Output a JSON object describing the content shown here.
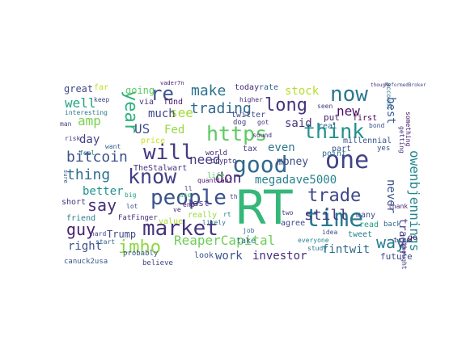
{
  "words": [
    {
      "text": "RT",
      "color": "#35b779"
    },
    {
      "text": "time",
      "color": "#2a788e"
    },
    {
      "text": "one",
      "color": "#414487"
    },
    {
      "text": "good",
      "color": "#31688e"
    },
    {
      "text": "people",
      "color": "#3b528b"
    },
    {
      "text": "market",
      "color": "#46337e"
    },
    {
      "text": "will",
      "color": "#443983"
    },
    {
      "text": "https",
      "color": "#5ec962"
    },
    {
      "text": "think",
      "color": "#21918c"
    },
    {
      "text": "know",
      "color": "#433e85"
    },
    {
      "text": "now",
      "color": "#2a788e"
    },
    {
      "text": "trade",
      "color": "#3e4989"
    },
    {
      "text": "long",
      "color": "#46327e"
    },
    {
      "text": "year",
      "color": "#2db27d"
    },
    {
      "text": "imho",
      "color": "#8fd744"
    },
    {
      "text": "guy",
      "color": "#481f70"
    },
    {
      "text": "re",
      "color": "#3b528b"
    },
    {
      "text": "say",
      "color": "#472d7b"
    },
    {
      "text": "trading",
      "color": "#31688e"
    },
    {
      "text": "ReaperCapital",
      "color": "#6ece58"
    },
    {
      "text": "still",
      "color": "#443a83"
    },
    {
      "text": "way",
      "color": "#287c8e"
    },
    {
      "text": "make",
      "color": "#2c728e"
    },
    {
      "text": "bitcoin",
      "color": "#3b528b"
    },
    {
      "text": "owenbjennings",
      "color": "#23888e"
    },
    {
      "text": "new",
      "color": "#471063"
    },
    {
      "text": "thing",
      "color": "#2e6f8e"
    },
    {
      "text": "don",
      "color": "#482173"
    },
    {
      "text": "need",
      "color": "#453882"
    },
    {
      "text": "megadave5000",
      "color": "#26828e"
    },
    {
      "text": "stock",
      "color": "#b5de2b"
    },
    {
      "text": "see",
      "color": "#a2da37"
    },
    {
      "text": "US",
      "color": "#3d4d8a"
    },
    {
      "text": "Fed",
      "color": "#95d840"
    },
    {
      "text": "going",
      "color": "#5ec962"
    },
    {
      "text": "well",
      "color": "#21a685"
    },
    {
      "text": "amp",
      "color": "#7ad151"
    },
    {
      "text": "much",
      "color": "#404588"
    },
    {
      "text": "said",
      "color": "#46327e"
    },
    {
      "text": "even",
      "color": "#2a788e"
    },
    {
      "text": "money",
      "color": "#3e4a89"
    },
    {
      "text": "never",
      "color": "#3a548c"
    },
    {
      "text": "trader",
      "color": "#433d84"
    },
    {
      "text": "best",
      "color": "#38588c"
    },
    {
      "text": "fintwit",
      "color": "#2f6b8e"
    },
    {
      "text": "work",
      "color": "#3b528b"
    },
    {
      "text": "investor",
      "color": "#472c7a"
    },
    {
      "text": "right",
      "color": "#3d4e8a"
    },
    {
      "text": "better",
      "color": "#21918c"
    },
    {
      "text": "Trump",
      "color": "#3e4989"
    },
    {
      "text": "day",
      "color": "#424086"
    },
    {
      "text": "great",
      "color": "#3f4788"
    },
    {
      "text": "TheStalwart",
      "color": "#472f7d"
    },
    {
      "text": "friend",
      "color": "#2a788e"
    },
    {
      "text": "short",
      "color": "#453781"
    },
    {
      "text": "last",
      "color": "#46307e"
    },
    {
      "text": "today",
      "color": "#482979"
    },
    {
      "text": "rate",
      "color": "#34618d"
    },
    {
      "text": "twitter",
      "color": "#3f4889"
    },
    {
      "text": "price",
      "color": "#c8e020"
    },
    {
      "text": "via",
      "color": "#46327e"
    },
    {
      "text": "fund",
      "color": "#481a6c"
    },
    {
      "text": "point",
      "color": "#2c728e"
    },
    {
      "text": "put",
      "color": "#482071"
    },
    {
      "text": "tax",
      "color": "#453882"
    },
    {
      "text": "take",
      "color": "#2f6c8e"
    },
    {
      "text": "look",
      "color": "#3b528b"
    },
    {
      "text": "first",
      "color": "#440154"
    },
    {
      "text": "real",
      "color": "#2e6e8e"
    },
    {
      "text": "part",
      "color": "#3a548c"
    },
    {
      "text": "millennial",
      "color": "#38588c"
    },
    {
      "text": "tweet",
      "color": "#277f8e"
    },
    {
      "text": "read",
      "color": "#1f9a8a"
    },
    {
      "text": "many",
      "color": "#3d4e8a"
    },
    {
      "text": "agree",
      "color": "#3f4889"
    },
    {
      "text": "value",
      "color": "#addc30"
    },
    {
      "text": "really",
      "color": "#9bd93c"
    },
    {
      "text": "FatFinger",
      "color": "#472d7b"
    },
    {
      "text": "probably",
      "color": "#3b528b"
    },
    {
      "text": "world",
      "color": "#482677"
    },
    {
      "text": "life",
      "color": "#5cc863"
    },
    {
      "text": "crypto",
      "color": "#453581"
    },
    {
      "text": "future",
      "color": "#3e4989"
    },
    {
      "text": "go",
      "color": "#471365"
    },
    {
      "text": "back",
      "color": "#31688e"
    },
    {
      "text": "believe",
      "color": "#414487"
    },
    {
      "text": "canuck2usa",
      "color": "#3a548c"
    },
    {
      "text": "quantian1",
      "color": "#481467"
    },
    {
      "text": "higher",
      "color": "#472d7b"
    },
    {
      "text": "dog",
      "color": "#443b84"
    },
    {
      "text": "got",
      "color": "#46337f"
    },
    {
      "text": "sound",
      "color": "#46307e"
    },
    {
      "text": "bond",
      "color": "#3b518b"
    },
    {
      "text": "far",
      "color": "#bddf26"
    },
    {
      "text": "keep",
      "color": "#3e4a89"
    },
    {
      "text": "interesting",
      "color": "#2a788e"
    },
    {
      "text": "want",
      "color": "#33638d"
    },
    {
      "text": "feel",
      "color": "#2f6c8e"
    },
    {
      "text": "hard",
      "color": "#3f4788"
    },
    {
      "text": "start",
      "color": "#32648e"
    },
    {
      "text": "thought",
      "color": "#443983"
    },
    {
      "text": "thank",
      "color": "#482878"
    },
    {
      "text": "something",
      "color": "#48186a"
    },
    {
      "text": "getting",
      "color": "#45337f"
    },
    {
      "text": "account",
      "color": "#2d708e"
    },
    {
      "text": "yes",
      "color": "#3b528b"
    },
    {
      "text": "true",
      "color": "#433e85"
    },
    {
      "text": "everyone",
      "color": "#25848e"
    },
    {
      "text": "study",
      "color": "#2a788e"
    },
    {
      "text": "idea",
      "color": "#3d4e8a"
    },
    {
      "text": "two",
      "color": "#46327e"
    },
    {
      "text": "vader7n",
      "color": "#482173"
    },
    {
      "text": "seen",
      "color": "#443983"
    },
    {
      "text": "likely",
      "color": "#2c728e"
    },
    {
      "text": "end",
      "color": "#481c6e"
    },
    {
      "text": "man",
      "color": "#3e4989"
    },
    {
      "text": "risk",
      "color": "#46337e"
    },
    {
      "text": "job",
      "color": "#31688e"
    },
    {
      "text": "big",
      "color": "#1fa187"
    },
    {
      "text": "use",
      "color": "#4ac16d"
    },
    {
      "text": "lot",
      "color": "#3b528b"
    },
    {
      "text": "ve",
      "color": "#482475"
    },
    {
      "text": "th",
      "color": "#443983"
    },
    {
      "text": "ll",
      "color": "#46307e"
    },
    {
      "text": "rt",
      "color": "#2a788e"
    },
    {
      "text": "sure",
      "color": "#3b528b"
    },
    {
      "text": "though",
      "color": "#472d7b"
    },
    {
      "text": "ReformedBroker",
      "color": "#3e4a89"
    }
  ]
}
